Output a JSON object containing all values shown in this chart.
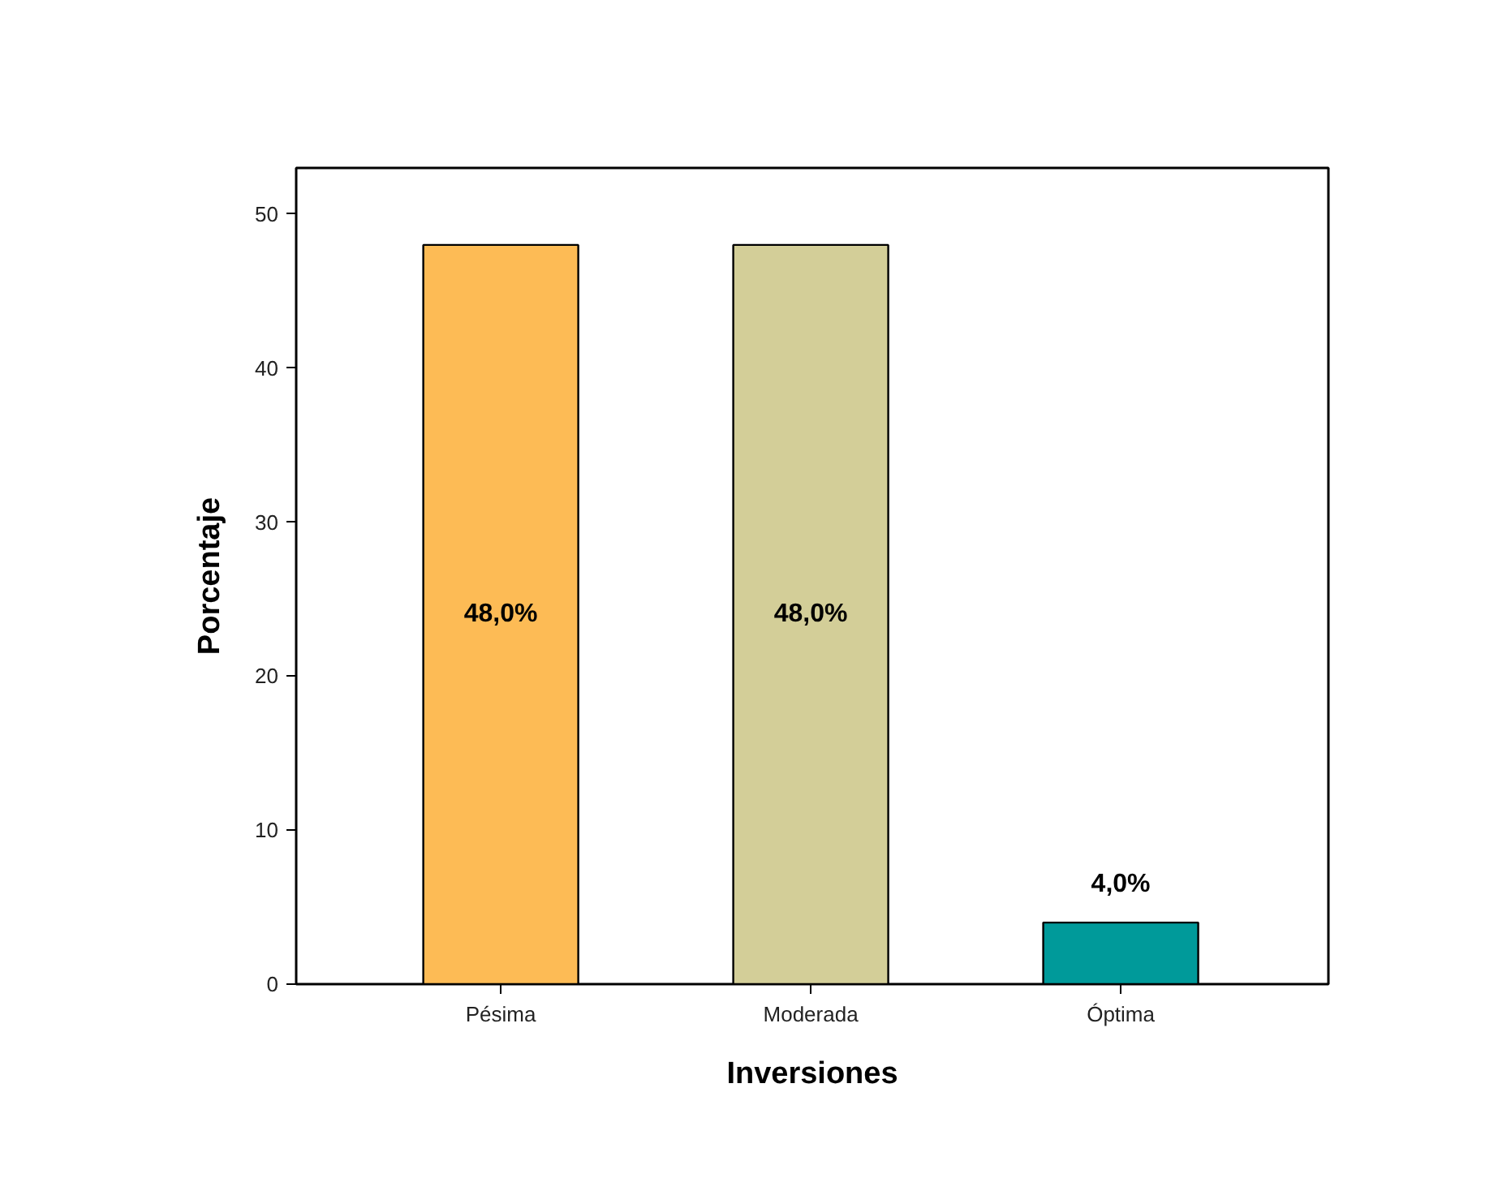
{
  "chart_data": {
    "type": "bar",
    "xlabel": "Inversiones",
    "ylabel": "Porcentaje",
    "categories": [
      "Pésima",
      "Moderada",
      "Óptima"
    ],
    "values": [
      48,
      48,
      4
    ],
    "colors": [
      "#fdbb55",
      "#d3ce98",
      "#009a9a"
    ],
    "value_labels": [
      "48,0%",
      "48,0%",
      "4,0%"
    ],
    "ylim": [
      0,
      53
    ],
    "yticks": [
      0,
      10,
      20,
      30,
      40,
      50
    ]
  }
}
